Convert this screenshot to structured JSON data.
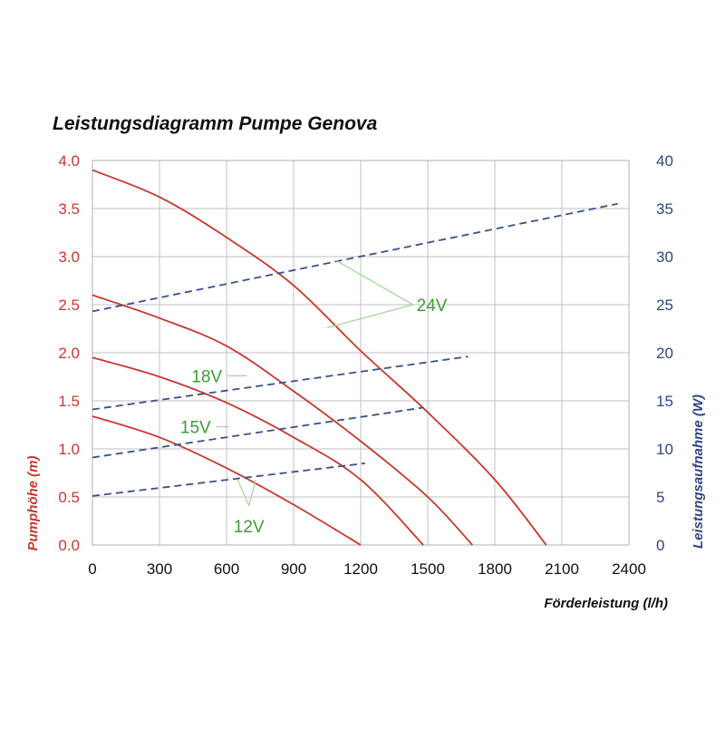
{
  "chart_data": {
    "type": "line",
    "title": "Leistungsdiagramm Pumpe Genova",
    "xlabel": "Förderleistung (l/h)",
    "ylabel_left": "Pumphöhe (m)",
    "ylabel_right": "Leistungsaufnahme (W)",
    "xlim": [
      0,
      2400
    ],
    "ylim_left": [
      0,
      4
    ],
    "ylim_right": [
      0,
      40
    ],
    "x_ticks": [
      "0",
      "300",
      "600",
      "900",
      "1200",
      "1500",
      "1800",
      "2100",
      "2400"
    ],
    "y_left_ticks": [
      "0.0",
      "0.5",
      "1.0",
      "1.5",
      "2.0",
      "2.5",
      "3.0",
      "3.5",
      "4.0"
    ],
    "y_right_ticks": [
      "0",
      "5",
      "10",
      "15",
      "20",
      "25",
      "30",
      "35",
      "40"
    ],
    "grid": true,
    "colors": {
      "head_curves": "#c8382c",
      "power_curves": "#3b5088",
      "left_axis_text": "#c8382c",
      "right_axis_text": "#2f4585",
      "voltage_labels": "#3f9b35",
      "leader_lines": "#a8d8a0",
      "grid": "#c0c0c0"
    },
    "head_series": [
      {
        "voltage": "24V",
        "points": [
          [
            0,
            3.9
          ],
          [
            300,
            3.62
          ],
          [
            600,
            3.2
          ],
          [
            900,
            2.7
          ],
          [
            1200,
            2.02
          ],
          [
            1500,
            1.38
          ],
          [
            1800,
            0.68
          ],
          [
            2030,
            0.0
          ]
        ]
      },
      {
        "voltage": "18V",
        "points": [
          [
            0,
            2.6
          ],
          [
            300,
            2.36
          ],
          [
            600,
            2.07
          ],
          [
            900,
            1.6
          ],
          [
            1200,
            1.08
          ],
          [
            1500,
            0.5
          ],
          [
            1700,
            0.0
          ]
        ]
      },
      {
        "voltage": "15V",
        "points": [
          [
            0,
            1.95
          ],
          [
            300,
            1.75
          ],
          [
            600,
            1.48
          ],
          [
            900,
            1.12
          ],
          [
            1200,
            0.68
          ],
          [
            1480,
            0.0
          ]
        ]
      },
      {
        "voltage": "12V",
        "points": [
          [
            0,
            1.34
          ],
          [
            300,
            1.12
          ],
          [
            600,
            0.8
          ],
          [
            900,
            0.42
          ],
          [
            1200,
            0.0
          ]
        ]
      }
    ],
    "power_series": [
      {
        "voltage": "24V",
        "points": [
          [
            0,
            24.3
          ],
          [
            2350,
            35.5
          ]
        ]
      },
      {
        "voltage": "18V",
        "points": [
          [
            0,
            14.1
          ],
          [
            1680,
            19.6
          ]
        ]
      },
      {
        "voltage": "15V",
        "points": [
          [
            0,
            9.1
          ],
          [
            1480,
            14.3
          ]
        ]
      },
      {
        "voltage": "12V",
        "points": [
          [
            0,
            5.1
          ],
          [
            1220,
            8.5
          ]
        ]
      }
    ],
    "voltage_labels": [
      {
        "text": "24V",
        "at": [
          1450,
          2.5
        ],
        "anchor": "start",
        "targets": [
          [
            1090,
            2.96
          ],
          [
            1050,
            2.26
          ]
        ]
      },
      {
        "text": "18V",
        "at": [
          580,
          1.76
        ],
        "anchor": "end",
        "targets": [
          [
            690,
            1.76
          ]
        ]
      },
      {
        "text": "15V",
        "at": [
          530,
          1.23
        ],
        "anchor": "end",
        "targets": [
          [
            610,
            1.23
          ]
        ]
      },
      {
        "text": "12V",
        "at": [
          700,
          0.2
        ],
        "anchor": "middle",
        "targets": [
          [
            650,
            0.68
          ],
          [
            730,
            0.68
          ]
        ]
      }
    ]
  }
}
